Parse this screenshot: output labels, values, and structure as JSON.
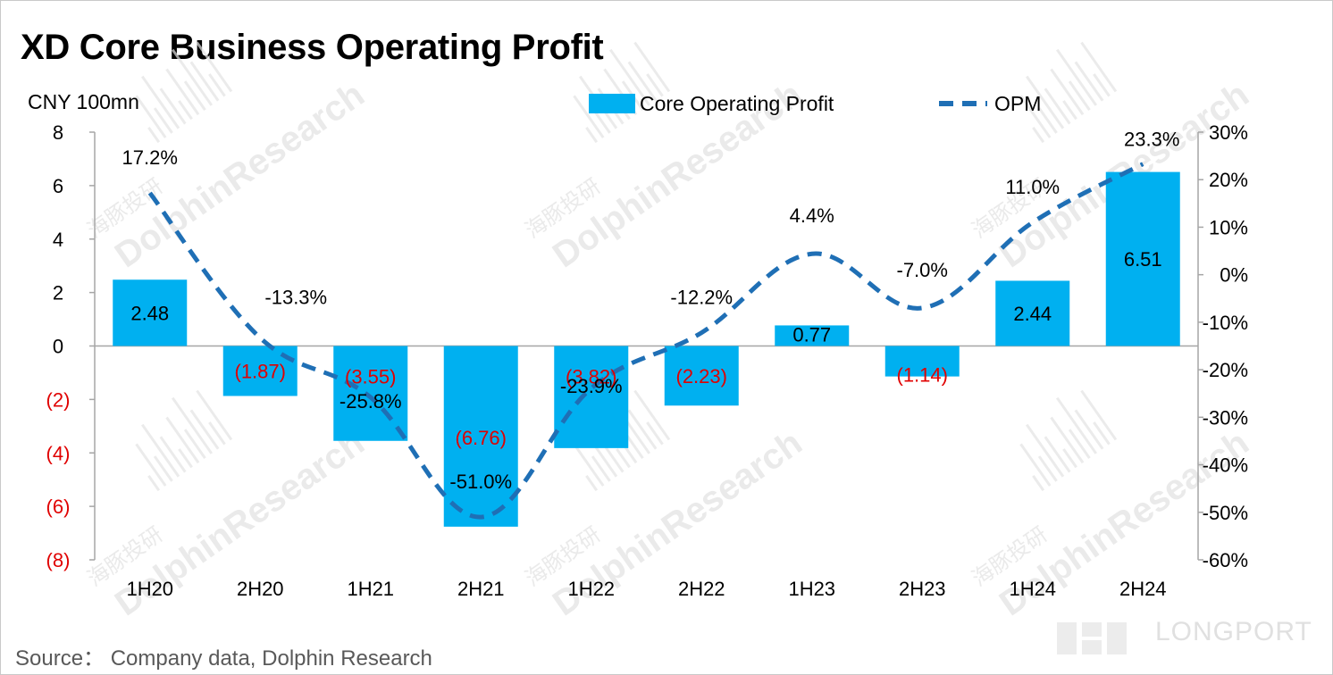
{
  "header": {
    "title": "XD Core Business Operating Profit",
    "unit_label": "CNY 100mn"
  },
  "footer": {
    "source": "Source：  Company data, Dolphin Research",
    "brand": "LONGPORT"
  },
  "watermark": {
    "text": "DolphinResearch",
    "text_cn": "海豚投研"
  },
  "colors": {
    "bar": "#00B0F0",
    "line": "#1F6FB5",
    "negative_text": "#E00000",
    "axis": "#A6A6A6"
  },
  "chart_data": {
    "type": "bar",
    "title": "XD Core Business Operating Profit",
    "categories": [
      "1H20",
      "2H20",
      "1H21",
      "2H21",
      "1H22",
      "2H22",
      "1H23",
      "2H23",
      "1H24",
      "2H24"
    ],
    "series": [
      {
        "name": "Core Operating Profit",
        "type": "bar",
        "axis": "left",
        "values": [
          2.48,
          -1.87,
          -3.55,
          -6.76,
          -3.82,
          -2.23,
          0.77,
          -1.14,
          2.44,
          6.51
        ],
        "labels": [
          "2.48",
          "(1.87)",
          "(3.55)",
          "(6.76)",
          "(3.82)",
          "(2.23)",
          "0.77",
          "(1.14)",
          "2.44",
          "6.51"
        ]
      },
      {
        "name": "OPM",
        "type": "line",
        "style": "dashed",
        "axis": "right",
        "values": [
          17.2,
          -13.3,
          -25.8,
          -51.0,
          -23.9,
          -12.2,
          4.4,
          -7.0,
          11.0,
          23.3
        ],
        "labels": [
          "17.2%",
          "-13.3%",
          "-25.8%",
          "-51.0%",
          "-23.9%",
          "-12.2%",
          "4.4%",
          "-7.0%",
          "11.0%",
          "23.3%"
        ]
      }
    ],
    "left_axis": {
      "ylim": [
        -8,
        8
      ],
      "ticks": [
        8,
        6,
        4,
        2,
        0,
        -2,
        -4,
        -6,
        -8
      ],
      "tick_labels": [
        "8",
        "6",
        "4",
        "2",
        "0",
        "(2)",
        "(4)",
        "(6)",
        "(8)"
      ]
    },
    "right_axis": {
      "ylim": [
        -60,
        30
      ],
      "ticks": [
        30,
        20,
        10,
        0,
        -10,
        -20,
        -30,
        -40,
        -50,
        -60
      ],
      "tick_labels": [
        "30%",
        "20%",
        "10%",
        "0%",
        "-10%",
        "-20%",
        "-30%",
        "-40%",
        "-50%",
        "-60%"
      ]
    },
    "grid": false,
    "legend_position": "top"
  }
}
